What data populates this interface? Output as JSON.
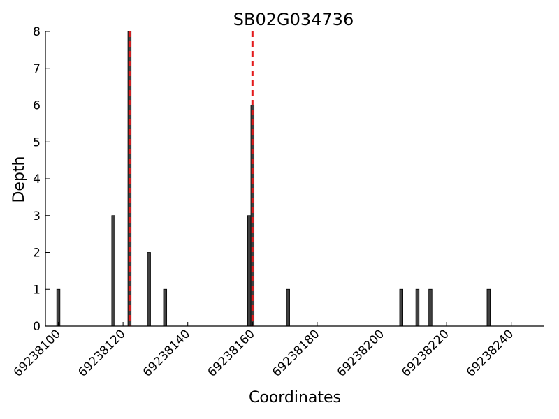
{
  "chart_data": {
    "type": "bar",
    "title": "SB02G034736",
    "xlabel": "Coordinates",
    "ylabel": "Depth",
    "xlim": [
      69238096,
      69238250
    ],
    "ylim": [
      0,
      8
    ],
    "xticks": [
      69238100,
      69238120,
      69238140,
      69238160,
      69238180,
      69238200,
      69238220,
      69238240
    ],
    "yticks": [
      0,
      1,
      2,
      3,
      4,
      5,
      6,
      7,
      8
    ],
    "x": [
      69238100,
      69238117,
      69238122,
      69238128,
      69238133,
      69238159,
      69238160,
      69238171,
      69238206,
      69238211,
      69238215,
      69238233
    ],
    "values": [
      1,
      3,
      8,
      2,
      1,
      3,
      6,
      1,
      1,
      1,
      1,
      1
    ],
    "marker_lines": [
      69238122,
      69238160
    ],
    "marker_color": "#e31a1c",
    "bar_color": "#404040",
    "grid": false
  }
}
